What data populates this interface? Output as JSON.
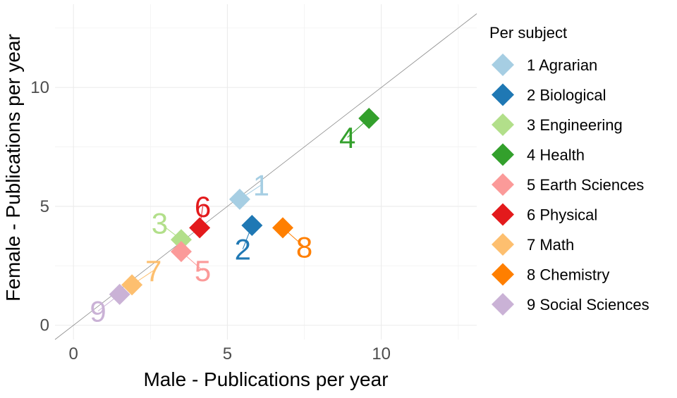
{
  "chart_data": {
    "type": "scatter",
    "xlabel": "Male - Publications per year",
    "ylabel": "Female - Publications per year",
    "xlim": [
      -0.6,
      13.1
    ],
    "ylim": [
      -0.6,
      13.5
    ],
    "xticks": [
      0,
      5,
      10
    ],
    "yticks": [
      0,
      5,
      10
    ],
    "grid": true,
    "reference_line": {
      "slope": 1,
      "intercept": 0,
      "color": "#8c8c8c"
    },
    "legend": {
      "title": "Per subject",
      "position": "right"
    },
    "series": [
      {
        "id": "1",
        "name": "Agrarian",
        "legend_label": "1 Agrarian",
        "color": "#a6cee3",
        "x": 5.4,
        "y": 5.3,
        "label_x": 6.1,
        "label_y": 5.9
      },
      {
        "id": "2",
        "name": "Biological",
        "legend_label": "2 Biological",
        "color": "#1f78b4",
        "x": 5.8,
        "y": 4.2,
        "label_x": 5.5,
        "label_y": 3.2
      },
      {
        "id": "3",
        "name": "Engineering",
        "legend_label": "3 Engineering",
        "color": "#b2df8a",
        "x": 3.5,
        "y": 3.6,
        "label_x": 2.8,
        "label_y": 4.3
      },
      {
        "id": "4",
        "name": "Health",
        "legend_label": "4 Health",
        "color": "#33a02c",
        "x": 9.6,
        "y": 8.7,
        "label_x": 8.9,
        "label_y": 7.9
      },
      {
        "id": "5",
        "name": "Earth Sciences",
        "legend_label": "5 Earth Sciences",
        "color": "#fb9a99",
        "x": 3.5,
        "y": 3.1,
        "label_x": 4.2,
        "label_y": 2.3
      },
      {
        "id": "6",
        "name": "Physical",
        "legend_label": "6 Physical",
        "color": "#e31a1c",
        "x": 4.1,
        "y": 4.1,
        "label_x": 4.2,
        "label_y": 5.0
      },
      {
        "id": "7",
        "name": "Math",
        "legend_label": "7 Math",
        "color": "#fdbf6f",
        "x": 1.9,
        "y": 1.7,
        "label_x": 2.6,
        "label_y": 2.3
      },
      {
        "id": "8",
        "name": "Chemistry",
        "legend_label": "8 Chemistry",
        "color": "#ff7f00",
        "x": 6.8,
        "y": 4.1,
        "label_x": 7.5,
        "label_y": 3.3
      },
      {
        "id": "9",
        "name": "Social Sciences",
        "legend_label": "9 Social Sciences",
        "color": "#cab2d6",
        "x": 1.5,
        "y": 1.3,
        "label_x": 0.8,
        "label_y": 0.6
      }
    ]
  }
}
